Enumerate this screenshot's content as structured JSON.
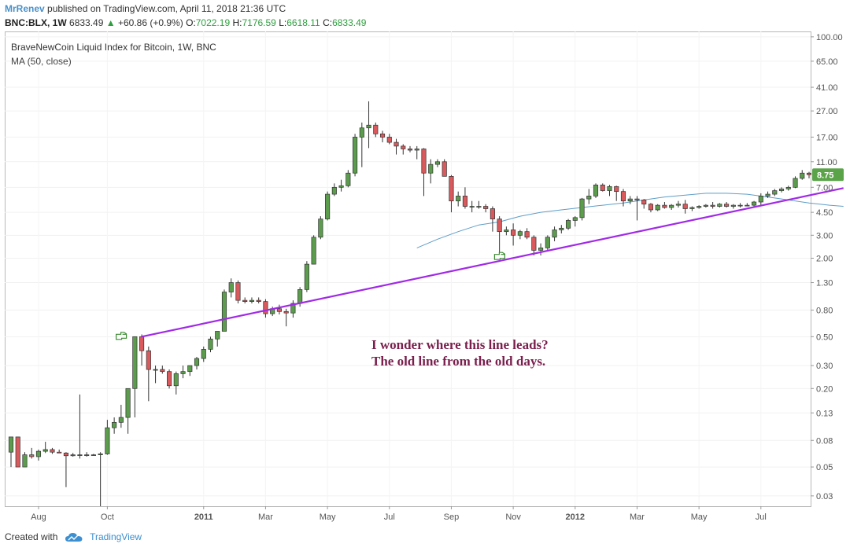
{
  "header": {
    "author": "MrRenev",
    "published_text": "published on TradingView.com, April 11, 2018 21:36 UTC",
    "symbol": "BNC:BLX, 1W",
    "price": "6833.49",
    "change_arrow": "▲",
    "change": "+60.86 (+0.9%)",
    "o_label": "O:",
    "o_value": "7022.19",
    "h_label": "H:",
    "h_value": "7176.59",
    "l_label": "L:",
    "l_value": "6618.11",
    "c_label": "C:",
    "c_value": "6833.49"
  },
  "footer": {
    "created_with": "Created with",
    "brand": "TradingView"
  },
  "chart_data": {
    "type": "candlestick",
    "title": "BraveNewCoin Liquid Index for Bitcoin, 1W, BNC",
    "subtitle": "MA (50, close)",
    "y_scale": "log",
    "ylim": [
      0.025,
      110
    ],
    "y_ticks": [
      100,
      65,
      41,
      27,
      17,
      11,
      7,
      4.5,
      3,
      2,
      1.3,
      0.8,
      0.5,
      0.3,
      0.2,
      0.13,
      0.08,
      0.05,
      0.03
    ],
    "y_tick_labels": [
      "100.00",
      "65.00",
      "41.00",
      "27.00",
      "17.00",
      "11.00",
      "7.00",
      "4.50",
      "3.00",
      "2.00",
      "1.30",
      "0.80",
      "0.50",
      "0.30",
      "0.20",
      "0.13",
      "0.08",
      "0.05",
      "0.03"
    ],
    "x_ticks": [
      {
        "label": "Aug",
        "index": 4,
        "bold": false
      },
      {
        "label": "Oct",
        "index": 14,
        "bold": false
      },
      {
        "label": "2011",
        "index": 28,
        "bold": true
      },
      {
        "label": "Mar",
        "index": 37,
        "bold": false
      },
      {
        "label": "May",
        "index": 46,
        "bold": false
      },
      {
        "label": "Jul",
        "index": 55,
        "bold": false
      },
      {
        "label": "Sep",
        "index": 64,
        "bold": false
      },
      {
        "label": "Nov",
        "index": 73,
        "bold": false
      },
      {
        "label": "2012",
        "index": 82,
        "bold": true
      },
      {
        "label": "Mar",
        "index": 91,
        "bold": false
      },
      {
        "label": "May",
        "index": 100,
        "bold": false
      },
      {
        "label": "Jul",
        "index": 109,
        "bold": false
      }
    ],
    "last_price_label": "8.75",
    "last_price_value": 8.75,
    "candles": [
      [
        0.065,
        0.085,
        0.05,
        0.085
      ],
      [
        0.085,
        0.085,
        0.05,
        0.05
      ],
      [
        0.05,
        0.065,
        0.05,
        0.062
      ],
      [
        0.062,
        0.07,
        0.058,
        0.06
      ],
      [
        0.06,
        0.068,
        0.056,
        0.066
      ],
      [
        0.066,
        0.078,
        0.064,
        0.068
      ],
      [
        0.068,
        0.07,
        0.063,
        0.065
      ],
      [
        0.065,
        0.068,
        0.064,
        0.064
      ],
      [
        0.064,
        0.065,
        0.035,
        0.061
      ],
      [
        0.061,
        0.064,
        0.06,
        0.062
      ],
      [
        0.062,
        0.18,
        0.058,
        0.062
      ],
      [
        0.062,
        0.065,
        0.06,
        0.062
      ],
      [
        0.062,
        0.063,
        0.061,
        0.062
      ],
      [
        0.062,
        0.065,
        0.025,
        0.063
      ],
      [
        0.063,
        0.115,
        0.062,
        0.1
      ],
      [
        0.1,
        0.12,
        0.09,
        0.11
      ],
      [
        0.11,
        0.15,
        0.1,
        0.12
      ],
      [
        0.12,
        0.17,
        0.09,
        0.2
      ],
      [
        0.2,
        0.35,
        0.12,
        0.5
      ],
      [
        0.5,
        0.52,
        0.3,
        0.39
      ],
      [
        0.39,
        0.42,
        0.16,
        0.28
      ],
      [
        0.28,
        0.3,
        0.22,
        0.28
      ],
      [
        0.28,
        0.3,
        0.26,
        0.27
      ],
      [
        0.27,
        0.28,
        0.2,
        0.21
      ],
      [
        0.21,
        0.27,
        0.18,
        0.26
      ],
      [
        0.26,
        0.3,
        0.24,
        0.27
      ],
      [
        0.27,
        0.3,
        0.25,
        0.3
      ],
      [
        0.3,
        0.35,
        0.28,
        0.34
      ],
      [
        0.34,
        0.42,
        0.32,
        0.4
      ],
      [
        0.4,
        0.5,
        0.38,
        0.48
      ],
      [
        0.48,
        0.55,
        0.42,
        0.55
      ],
      [
        0.55,
        1.15,
        0.55,
        1.1
      ],
      [
        1.1,
        1.4,
        1.0,
        1.3
      ],
      [
        1.3,
        1.35,
        0.9,
        0.95
      ],
      [
        0.95,
        1.0,
        0.9,
        0.93
      ],
      [
        0.93,
        1.0,
        0.9,
        0.95
      ],
      [
        0.95,
        1.0,
        0.9,
        0.93
      ],
      [
        0.93,
        0.97,
        0.7,
        0.75
      ],
      [
        0.75,
        0.85,
        0.72,
        0.82
      ],
      [
        0.82,
        0.88,
        0.74,
        0.78
      ],
      [
        0.78,
        0.82,
        0.6,
        0.76
      ],
      [
        0.76,
        0.95,
        0.7,
        0.9
      ],
      [
        0.9,
        1.2,
        0.85,
        1.15
      ],
      [
        1.15,
        1.9,
        1.1,
        1.8
      ],
      [
        1.8,
        3.0,
        1.8,
        2.9
      ],
      [
        2.9,
        4.2,
        2.8,
        4.0
      ],
      [
        4.0,
        6.5,
        3.9,
        6.2
      ],
      [
        6.2,
        7.5,
        6.0,
        7.0
      ],
      [
        7.0,
        8.0,
        6.5,
        7.2
      ],
      [
        7.2,
        9.5,
        7.0,
        9.0
      ],
      [
        9.0,
        18.0,
        8.5,
        17.0
      ],
      [
        17.0,
        22.0,
        10.0,
        20.0
      ],
      [
        20.0,
        32.0,
        14.0,
        21.0
      ],
      [
        21.0,
        22.0,
        17.0,
        18.0
      ],
      [
        18.0,
        19.0,
        15.5,
        17.0
      ],
      [
        17.0,
        18.0,
        15.0,
        15.5
      ],
      [
        15.5,
        16.5,
        12.5,
        14.5
      ],
      [
        14.5,
        15.0,
        12.5,
        13.8
      ],
      [
        13.8,
        14.5,
        13.0,
        13.5
      ],
      [
        13.5,
        14.5,
        11.5,
        13.8
      ],
      [
        13.8,
        14.0,
        6.0,
        9.0
      ],
      [
        9.0,
        11.5,
        7.5,
        10.5
      ],
      [
        10.5,
        11.5,
        10.0,
        11.0
      ],
      [
        11.0,
        11.5,
        8.5,
        8.5
      ],
      [
        8.5,
        8.7,
        4.5,
        5.5
      ],
      [
        5.5,
        6.5,
        5.0,
        6.0
      ],
      [
        6.0,
        7.0,
        4.8,
        5.0
      ],
      [
        5.0,
        5.5,
        4.5,
        5.0
      ],
      [
        5.0,
        5.5,
        4.8,
        5.0
      ],
      [
        5.0,
        5.2,
        4.5,
        4.8
      ],
      [
        4.8,
        5.0,
        3.2,
        4.0
      ],
      [
        4.0,
        4.2,
        2.2,
        3.2
      ],
      [
        3.2,
        3.5,
        3.0,
        3.3
      ],
      [
        3.3,
        3.7,
        2.5,
        3.0
      ],
      [
        3.0,
        3.3,
        2.8,
        3.2
      ],
      [
        3.2,
        3.4,
        2.8,
        2.9
      ],
      [
        2.9,
        3.0,
        2.1,
        2.3
      ],
      [
        2.3,
        2.6,
        2.1,
        2.4
      ],
      [
        2.4,
        3.0,
        2.3,
        2.9
      ],
      [
        2.9,
        3.5,
        2.7,
        3.3
      ],
      [
        3.3,
        3.6,
        3.1,
        3.4
      ],
      [
        3.4,
        4.0,
        3.3,
        3.9
      ],
      [
        3.9,
        4.2,
        3.5,
        4.1
      ],
      [
        4.1,
        5.8,
        3.9,
        5.7
      ],
      [
        5.7,
        6.8,
        5.2,
        6.0
      ],
      [
        6.0,
        7.5,
        5.8,
        7.3
      ],
      [
        7.3,
        7.5,
        6.5,
        6.6
      ],
      [
        6.6,
        7.3,
        6.0,
        7.1
      ],
      [
        7.1,
        7.2,
        5.5,
        6.5
      ],
      [
        6.5,
        6.8,
        5.0,
        5.5
      ],
      [
        5.5,
        6.0,
        5.2,
        5.7
      ],
      [
        5.7,
        6.0,
        3.9,
        5.6
      ],
      [
        5.6,
        5.7,
        4.8,
        5.2
      ],
      [
        5.2,
        5.3,
        4.5,
        4.7
      ],
      [
        4.7,
        5.2,
        4.6,
        5.1
      ],
      [
        5.1,
        5.4,
        4.8,
        4.9
      ],
      [
        4.9,
        5.2,
        4.7,
        5.1
      ],
      [
        5.1,
        5.5,
        4.9,
        5.2
      ],
      [
        5.2,
        5.6,
        4.4,
        4.8
      ],
      [
        4.8,
        5.0,
        4.6,
        4.9
      ],
      [
        4.9,
        5.1,
        4.8,
        5.0
      ],
      [
        5.0,
        5.2,
        4.9,
        5.1
      ],
      [
        5.1,
        5.4,
        4.8,
        5.0
      ],
      [
        5.0,
        5.3,
        4.9,
        5.2
      ],
      [
        5.2,
        5.4,
        4.9,
        5.0
      ],
      [
        5.0,
        5.2,
        4.8,
        5.1
      ],
      [
        5.1,
        5.3,
        4.9,
        5.1
      ],
      [
        5.1,
        5.3,
        5.0,
        5.1
      ],
      [
        5.1,
        5.5,
        5.0,
        5.4
      ],
      [
        5.4,
        6.3,
        5.1,
        6.0
      ],
      [
        6.0,
        6.5,
        5.8,
        6.2
      ],
      [
        6.2,
        6.8,
        6.0,
        6.6
      ],
      [
        6.6,
        7.0,
        6.4,
        6.8
      ],
      [
        6.8,
        7.2,
        6.6,
        7.0
      ],
      [
        7.0,
        8.5,
        6.9,
        8.2
      ],
      [
        8.2,
        9.5,
        8.0,
        9.0
      ],
      [
        9.0,
        9.2,
        8.2,
        8.75
      ]
    ],
    "ma50": [
      [
        59,
        2.4
      ],
      [
        62,
        2.8
      ],
      [
        65,
        3.2
      ],
      [
        68,
        3.6
      ],
      [
        71,
        3.8
      ],
      [
        74,
        4.2
      ],
      [
        77,
        4.5
      ],
      [
        80,
        4.7
      ],
      [
        83,
        4.9
      ],
      [
        86,
        5.1
      ],
      [
        89,
        5.3
      ],
      [
        92,
        5.6
      ],
      [
        95,
        5.9
      ],
      [
        98,
        6.1
      ],
      [
        101,
        6.3
      ],
      [
        104,
        6.3
      ],
      [
        107,
        6.2
      ],
      [
        110,
        5.9
      ],
      [
        113,
        5.6
      ],
      [
        116,
        5.3
      ],
      [
        119,
        5.1
      ],
      [
        121,
        5.0
      ]
    ],
    "trendline": {
      "start": [
        19,
        0.5
      ],
      "end": [
        121,
        6.9
      ]
    },
    "annotation": {
      "line1": "I wonder where this line leads?",
      "line2": "The old line from the old days."
    },
    "markers": [
      {
        "name": "hand-pointer-icon",
        "index": 17,
        "value": 0.5
      },
      {
        "name": "hand-pointer-icon",
        "index": 72,
        "value": 2.05
      }
    ],
    "colors": {
      "up": "#5b9d4d",
      "down": "#d9595c",
      "trendline": "#a12ae6",
      "ma": "#5e9dc7",
      "text_annotation": "#7a1f4d",
      "label_bg": "#5aa349"
    }
  }
}
